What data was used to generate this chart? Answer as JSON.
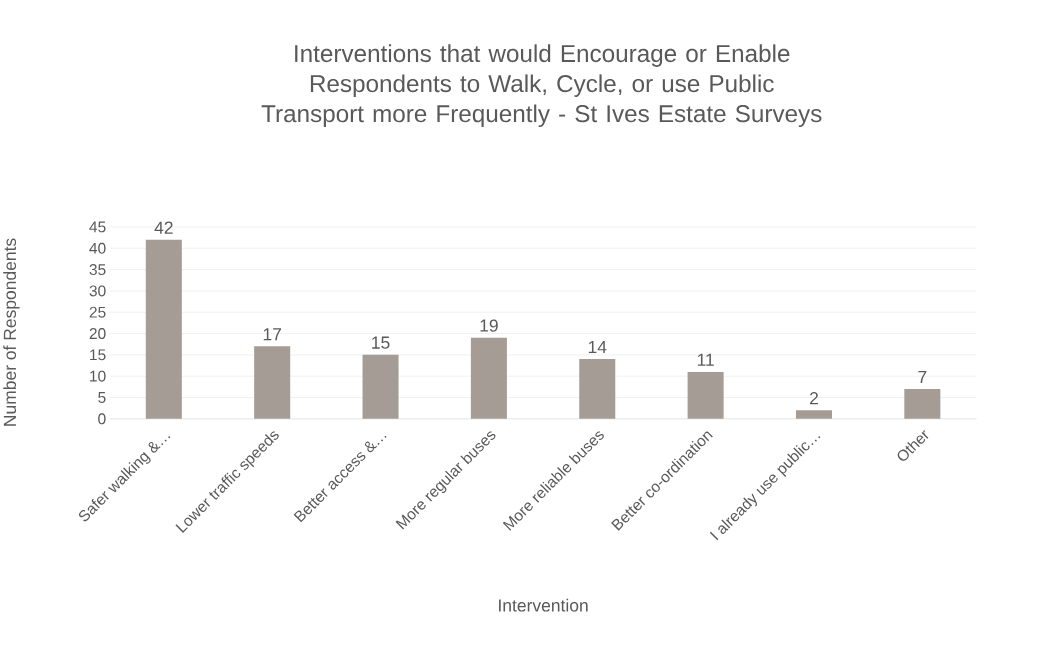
{
  "chart_data": {
    "type": "bar",
    "title": "Interventions that would Encourage or Enable Respondents to Walk, Cycle, or use Public Transport more Frequently - St Ives Estate Surveys",
    "xlabel": "Intervention",
    "ylabel": "Number of Respondents",
    "categories": [
      "Safer walking &…",
      "Lower traffic speeds",
      "Better access &…",
      "More regular buses",
      "More reliable buses",
      "Better co-ordination",
      "I already use public…",
      "Other"
    ],
    "values": [
      42,
      17,
      15,
      19,
      14,
      11,
      2,
      7
    ],
    "color": "#a59d95",
    "ylim": [
      0,
      45
    ],
    "yticks": [
      0,
      5,
      10,
      15,
      20,
      25,
      30,
      35,
      40,
      45
    ],
    "grid": "y",
    "data_labels": true
  }
}
